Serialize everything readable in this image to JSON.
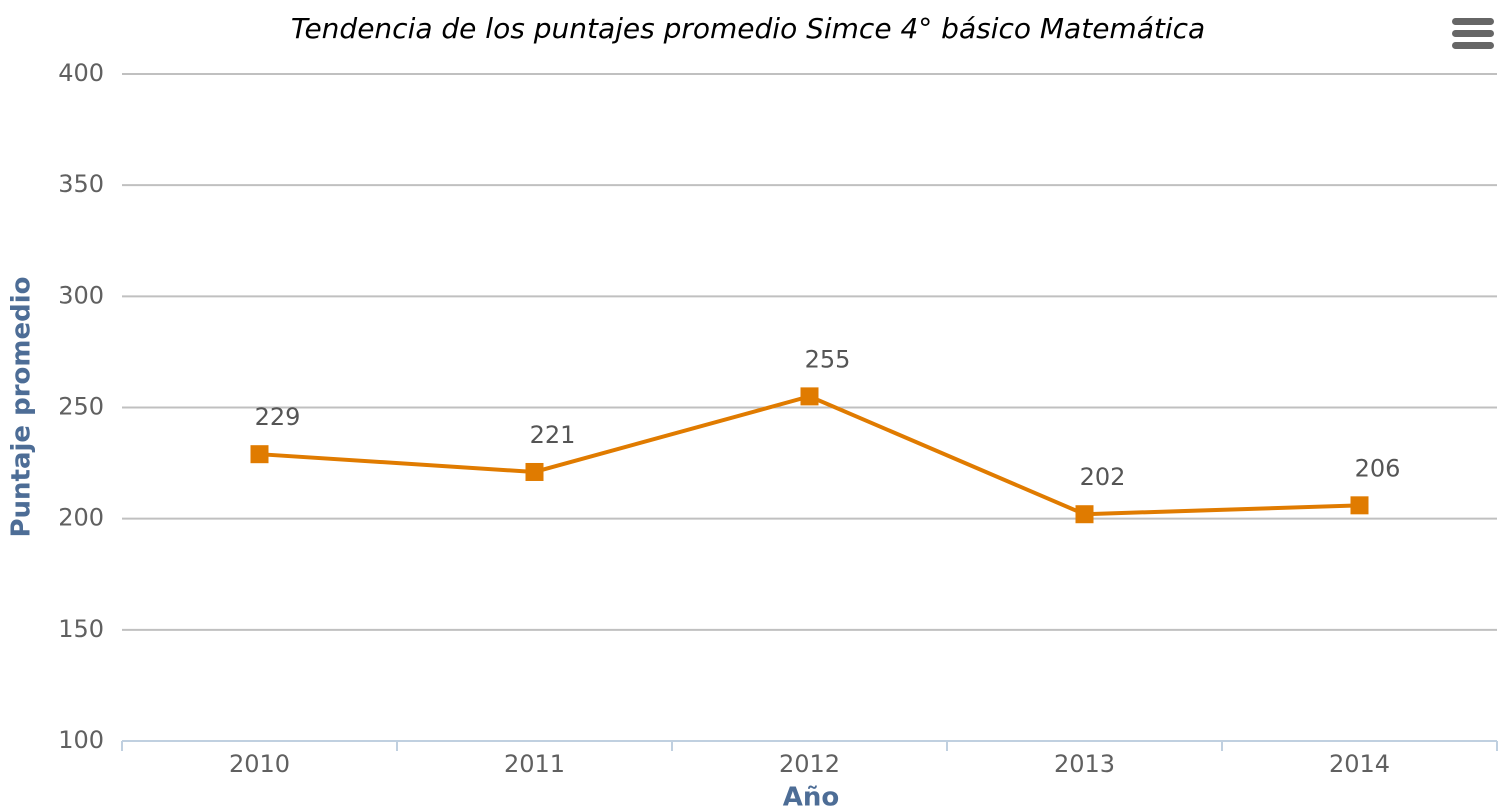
{
  "chart_data": {
    "type": "line",
    "title": "Tendencia de los puntajes promedio Simce 4° básico Matemática",
    "x_label": "Año",
    "y_label": "Puntaje promedio",
    "categories": [
      "2010",
      "2011",
      "2012",
      "2013",
      "2014"
    ],
    "series": [
      {
        "name": "Puntaje promedio",
        "color": "#e07b00",
        "values": [
          229,
          221,
          255,
          202,
          206
        ]
      }
    ],
    "ylim": [
      100,
      400
    ],
    "yticks": [
      100,
      150,
      200,
      250,
      300,
      350,
      400
    ],
    "grid": true
  }
}
